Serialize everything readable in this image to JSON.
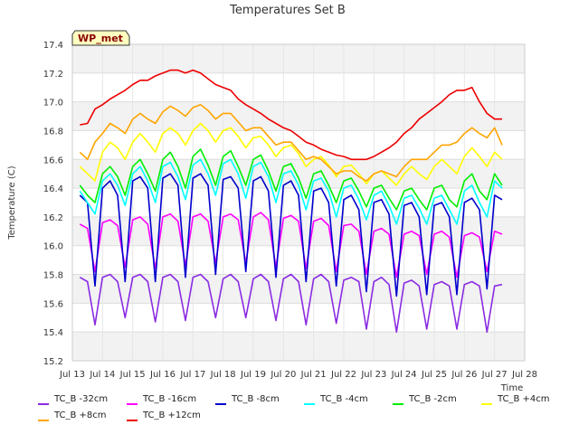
{
  "chart_data": {
    "type": "line",
    "title": "Temperatures Set B",
    "xlabel": "Time",
    "ylabel": "Temperature (C)",
    "badge": "WP_met",
    "xlim": [
      13.0,
      28.0
    ],
    "ylim": [
      15.2,
      17.4
    ],
    "x_ticks": [
      "Jul 13",
      "Jul 14",
      "Jul 15",
      "Jul 16",
      "Jul 17",
      "Jul 18",
      "Jul 19",
      "Jul 20",
      "Jul 21",
      "Jul 22",
      "Jul 23",
      "Jul 24",
      "Jul 25",
      "Jul 26",
      "Jul 27",
      "Jul 28"
    ],
    "y_ticks": [
      "15.2",
      "15.4",
      "15.6",
      "15.8",
      "16.0",
      "16.2",
      "16.4",
      "16.6",
      "16.8",
      "17.0",
      "17.2",
      "17.4"
    ],
    "grid": true,
    "legend_position": "bottom",
    "x": [
      13.25,
      13.5,
      13.75,
      14.0,
      14.25,
      14.5,
      14.75,
      15.0,
      15.25,
      15.5,
      15.75,
      16.0,
      16.25,
      16.5,
      16.75,
      17.0,
      17.25,
      17.5,
      17.75,
      18.0,
      18.25,
      18.5,
      18.75,
      19.0,
      19.25,
      19.5,
      19.75,
      20.0,
      20.25,
      20.5,
      20.75,
      21.0,
      21.25,
      21.5,
      21.75,
      22.0,
      22.25,
      22.5,
      22.75,
      23.0,
      23.25,
      23.5,
      23.75,
      24.0,
      24.25,
      24.5,
      24.75,
      25.0,
      25.25,
      25.5,
      25.75,
      26.0,
      26.25,
      26.5,
      26.75,
      27.0,
      27.25
    ],
    "series": [
      {
        "name": "TC_B -32cm",
        "color": "#8a2be2",
        "values": [
          15.78,
          15.75,
          15.45,
          15.78,
          15.8,
          15.75,
          15.5,
          15.78,
          15.8,
          15.75,
          15.47,
          15.78,
          15.8,
          15.75,
          15.48,
          15.78,
          15.8,
          15.75,
          15.5,
          15.77,
          15.8,
          15.75,
          15.5,
          15.77,
          15.8,
          15.75,
          15.48,
          15.77,
          15.8,
          15.75,
          15.45,
          15.77,
          15.8,
          15.75,
          15.46,
          15.76,
          15.78,
          15.75,
          15.42,
          15.75,
          15.78,
          15.73,
          15.4,
          15.74,
          15.76,
          15.72,
          15.42,
          15.73,
          15.75,
          15.72,
          15.42,
          15.73,
          15.75,
          15.72,
          15.4,
          15.72,
          15.73
        ]
      },
      {
        "name": "TC_B -16cm",
        "color": "#ff00ff",
        "values": [
          16.15,
          16.12,
          15.82,
          16.16,
          16.18,
          16.14,
          15.85,
          16.18,
          16.2,
          16.15,
          15.84,
          16.2,
          16.22,
          16.17,
          15.86,
          16.2,
          16.22,
          16.17,
          15.88,
          16.2,
          16.22,
          16.18,
          15.88,
          16.2,
          16.23,
          16.18,
          15.85,
          16.19,
          16.21,
          16.17,
          15.84,
          16.17,
          16.19,
          16.14,
          15.82,
          16.14,
          16.15,
          16.1,
          15.8,
          16.1,
          16.12,
          16.08,
          15.78,
          16.08,
          16.1,
          16.07,
          15.8,
          16.08,
          16.1,
          16.06,
          15.78,
          16.07,
          16.09,
          16.06,
          15.82,
          16.1,
          16.08
        ]
      },
      {
        "name": "TC_B -8cm",
        "color": "#0000cd",
        "values": [
          16.35,
          16.3,
          15.72,
          16.4,
          16.45,
          16.35,
          15.75,
          16.45,
          16.48,
          16.4,
          15.75,
          16.47,
          16.5,
          16.42,
          15.78,
          16.47,
          16.5,
          16.42,
          15.8,
          16.46,
          16.48,
          16.4,
          15.82,
          16.45,
          16.48,
          16.38,
          15.78,
          16.42,
          16.45,
          16.35,
          15.75,
          16.38,
          16.4,
          16.3,
          15.72,
          16.32,
          16.35,
          16.25,
          15.68,
          16.3,
          16.32,
          16.22,
          15.65,
          16.28,
          16.3,
          16.2,
          15.66,
          16.28,
          16.3,
          16.2,
          15.66,
          16.3,
          16.33,
          16.25,
          15.7,
          16.35,
          16.32
        ]
      },
      {
        "name": "TC_B -4cm",
        "color": "#00ffff",
        "values": [
          16.38,
          16.3,
          16.22,
          16.45,
          16.5,
          16.42,
          16.28,
          16.5,
          16.55,
          16.45,
          16.3,
          16.55,
          16.58,
          16.48,
          16.32,
          16.56,
          16.6,
          16.5,
          16.35,
          16.57,
          16.6,
          16.5,
          16.33,
          16.55,
          16.58,
          16.48,
          16.3,
          16.5,
          16.52,
          16.42,
          16.25,
          16.45,
          16.47,
          16.38,
          16.2,
          16.4,
          16.42,
          16.32,
          16.18,
          16.35,
          16.38,
          16.28,
          16.15,
          16.33,
          16.35,
          16.26,
          16.15,
          16.33,
          16.35,
          16.25,
          16.15,
          16.38,
          16.42,
          16.3,
          16.2,
          16.45,
          16.4
        ]
      },
      {
        "name": "TC_B -2cm",
        "color": "#00ee00",
        "values": [
          16.42,
          16.35,
          16.3,
          16.5,
          16.55,
          16.48,
          16.35,
          16.55,
          16.6,
          16.5,
          16.38,
          16.6,
          16.65,
          16.55,
          16.4,
          16.62,
          16.67,
          16.56,
          16.42,
          16.62,
          16.66,
          16.55,
          16.42,
          16.6,
          16.63,
          16.52,
          16.38,
          16.55,
          16.57,
          16.47,
          16.33,
          16.5,
          16.52,
          16.42,
          16.3,
          16.45,
          16.47,
          16.38,
          16.27,
          16.4,
          16.42,
          16.33,
          16.25,
          16.38,
          16.4,
          16.32,
          16.25,
          16.4,
          16.42,
          16.32,
          16.27,
          16.45,
          16.5,
          16.38,
          16.32,
          16.5,
          16.42
        ]
      },
      {
        "name": "TC_B +4cm",
        "color": "#ffff00",
        "values": [
          16.55,
          16.5,
          16.45,
          16.65,
          16.72,
          16.68,
          16.6,
          16.72,
          16.78,
          16.72,
          16.65,
          16.78,
          16.82,
          16.78,
          16.7,
          16.8,
          16.85,
          16.8,
          16.72,
          16.8,
          16.82,
          16.76,
          16.68,
          16.75,
          16.76,
          16.7,
          16.62,
          16.68,
          16.7,
          16.64,
          16.55,
          16.6,
          16.62,
          16.56,
          16.48,
          16.55,
          16.56,
          16.5,
          16.43,
          16.5,
          16.52,
          16.47,
          16.42,
          16.5,
          16.55,
          16.5,
          16.46,
          16.55,
          16.6,
          16.55,
          16.5,
          16.62,
          16.68,
          16.62,
          16.55,
          16.65,
          16.6
        ]
      },
      {
        "name": "TC_B +8cm",
        "color": "#ffa500",
        "values": [
          16.65,
          16.6,
          16.72,
          16.78,
          16.85,
          16.82,
          16.78,
          16.88,
          16.92,
          16.88,
          16.85,
          16.93,
          16.97,
          16.94,
          16.9,
          16.96,
          16.98,
          16.94,
          16.88,
          16.92,
          16.92,
          16.86,
          16.8,
          16.82,
          16.82,
          16.76,
          16.7,
          16.72,
          16.72,
          16.66,
          16.6,
          16.62,
          16.6,
          16.55,
          16.5,
          16.52,
          16.52,
          16.48,
          16.45,
          16.5,
          16.52,
          16.5,
          16.48,
          16.55,
          16.6,
          16.6,
          16.6,
          16.65,
          16.7,
          16.7,
          16.72,
          16.78,
          16.82,
          16.78,
          16.75,
          16.82,
          16.7
        ]
      },
      {
        "name": "TC_B +12cm",
        "color": "#ee0000",
        "values": [
          16.84,
          16.85,
          16.95,
          16.98,
          17.02,
          17.05,
          17.08,
          17.12,
          17.15,
          17.15,
          17.18,
          17.2,
          17.22,
          17.22,
          17.2,
          17.22,
          17.2,
          17.16,
          17.12,
          17.1,
          17.08,
          17.02,
          16.98,
          16.95,
          16.92,
          16.88,
          16.85,
          16.82,
          16.8,
          16.76,
          16.72,
          16.7,
          16.67,
          16.65,
          16.63,
          16.62,
          16.6,
          16.6,
          16.6,
          16.62,
          16.65,
          16.68,
          16.72,
          16.78,
          16.82,
          16.88,
          16.92,
          16.96,
          17.0,
          17.05,
          17.08,
          17.08,
          17.1,
          17.0,
          16.92,
          16.88,
          16.88
        ]
      }
    ]
  }
}
